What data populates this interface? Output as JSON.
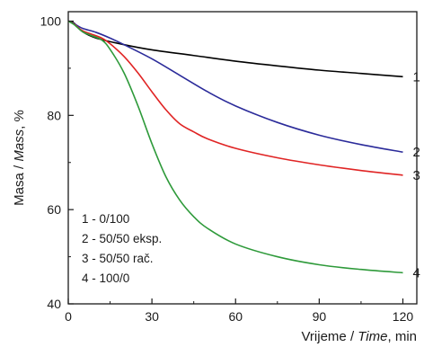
{
  "chart_data": {
    "type": "line",
    "xlabel": {
      "prefix": "Vrijeme / ",
      "italic": "Time",
      "suffix": ",  min"
    },
    "ylabel": {
      "prefix": "Masa / ",
      "italic": "Mass",
      "suffix": ",  %"
    },
    "xlim": [
      0,
      125
    ],
    "ylim": [
      40,
      102
    ],
    "xticks": [
      0,
      30,
      60,
      90,
      120
    ],
    "yticks": [
      40,
      60,
      80,
      100
    ],
    "grid": false,
    "legend": [
      "1 - 0/100",
      "2 - 50/50 eksp.",
      "3 - 50/50 rač.",
      "4 - 100/0"
    ],
    "legend_placement": "bottom-left",
    "series": [
      {
        "name": "1",
        "color": "#000000",
        "points": [
          [
            0,
            100
          ],
          [
            2,
            99.6
          ],
          [
            5,
            97.8
          ],
          [
            10,
            96.4
          ],
          [
            20,
            95.0
          ],
          [
            30,
            93.9
          ],
          [
            45,
            92.7
          ],
          [
            60,
            91.5
          ],
          [
            75,
            90.5
          ],
          [
            90,
            89.6
          ],
          [
            105,
            88.9
          ],
          [
            120,
            88.2
          ]
        ]
      },
      {
        "name": "2",
        "color": "#2b2b9a",
        "points": [
          [
            0,
            100
          ],
          [
            2,
            99.5
          ],
          [
            5,
            98.5
          ],
          [
            10,
            97.6
          ],
          [
            15,
            96.4
          ],
          [
            20,
            95.0
          ],
          [
            30,
            92.0
          ],
          [
            40,
            88.5
          ],
          [
            50,
            85.0
          ],
          [
            60,
            82.0
          ],
          [
            75,
            78.5
          ],
          [
            90,
            75.8
          ],
          [
            105,
            73.8
          ],
          [
            120,
            72.2
          ]
        ]
      },
      {
        "name": "3",
        "color": "#e02424",
        "points": [
          [
            0,
            100
          ],
          [
            2,
            99.4
          ],
          [
            5,
            98.0
          ],
          [
            8,
            97.3
          ],
          [
            12,
            96.4
          ],
          [
            15,
            95.2
          ],
          [
            20,
            92.5
          ],
          [
            25,
            89.0
          ],
          [
            30,
            85.0
          ],
          [
            35,
            81.2
          ],
          [
            40,
            78.2
          ],
          [
            45,
            76.5
          ],
          [
            50,
            75.0
          ],
          [
            60,
            73.0
          ],
          [
            75,
            71.0
          ],
          [
            90,
            69.5
          ],
          [
            105,
            68.3
          ],
          [
            120,
            67.3
          ]
        ]
      },
      {
        "name": "4",
        "color": "#2e9a3a",
        "points": [
          [
            0,
            100
          ],
          [
            2,
            99.3
          ],
          [
            5,
            97.8
          ],
          [
            8,
            97.0
          ],
          [
            12,
            96.0
          ],
          [
            15,
            94.0
          ],
          [
            20,
            89.0
          ],
          [
            25,
            82.0
          ],
          [
            30,
            74.0
          ],
          [
            35,
            67.0
          ],
          [
            40,
            62.0
          ],
          [
            45,
            58.5
          ],
          [
            50,
            56.0
          ],
          [
            60,
            52.7
          ],
          [
            75,
            50.0
          ],
          [
            90,
            48.3
          ],
          [
            105,
            47.3
          ],
          [
            120,
            46.6
          ]
        ]
      }
    ]
  }
}
